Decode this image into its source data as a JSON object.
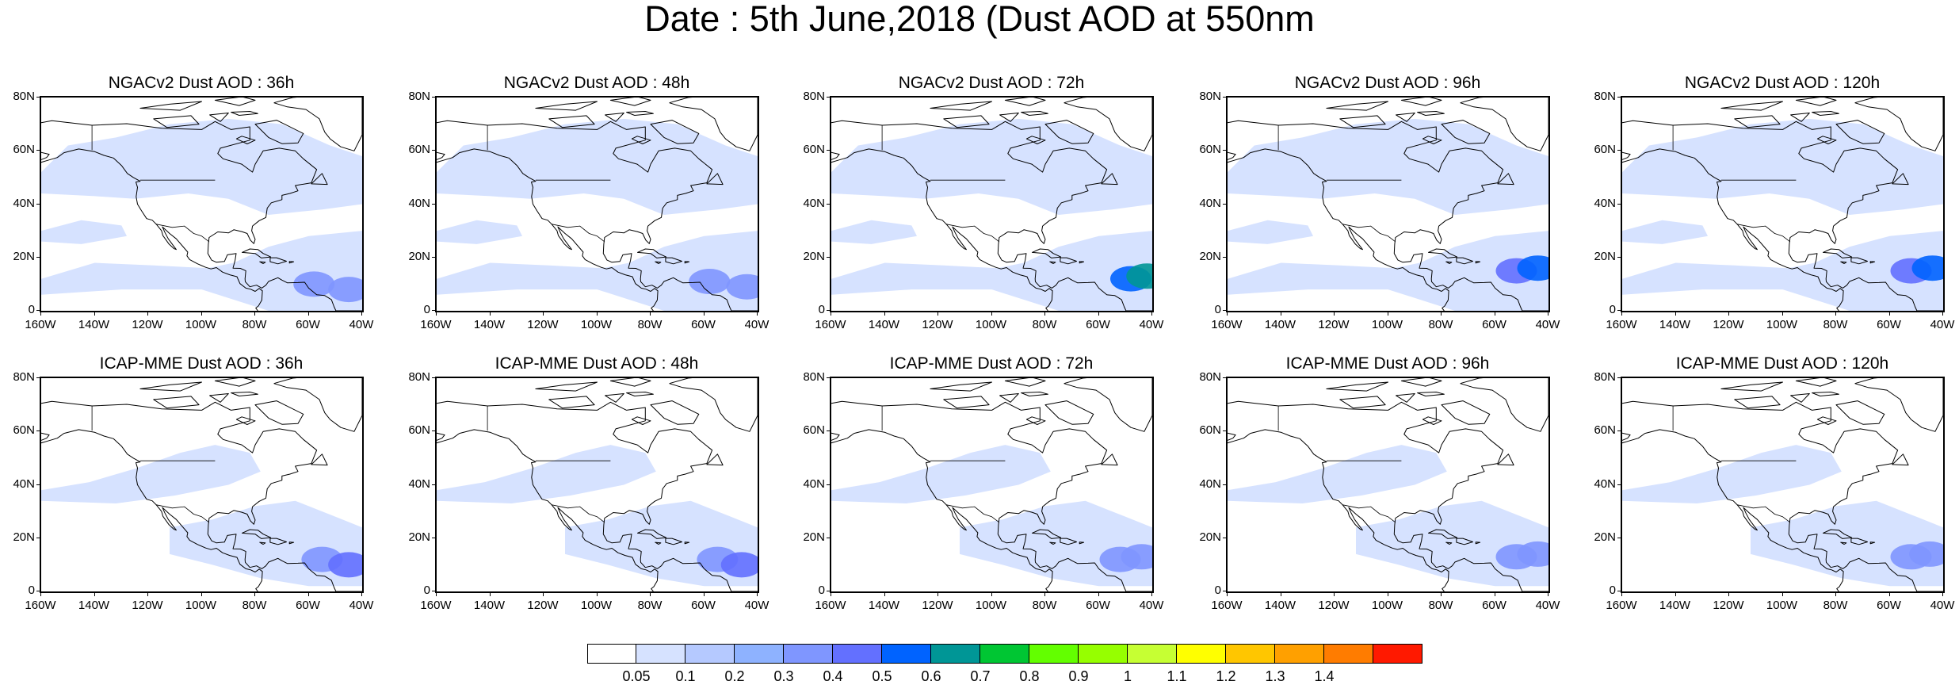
{
  "title": "Date : 5th June,2018 (Dust AOD at 550nm",
  "map_axes": {
    "lat_ticks": [
      "80N",
      "60N",
      "40N",
      "20N",
      "0"
    ],
    "lon_ticks": [
      "160W",
      "140W",
      "120W",
      "100W",
      "80W",
      "60W",
      "40W"
    ],
    "lon_range": [
      -160,
      -40
    ],
    "lat_range": [
      0,
      80
    ]
  },
  "panels": [
    {
      "title": "NGACv2 Dust AOD : 36h",
      "model": "NGACv2",
      "lead": "36h",
      "plumes": [
        {
          "lon": -58,
          "lat": 10,
          "aod": 0.3
        },
        {
          "lon": -45,
          "lat": 8,
          "aod": 0.3
        }
      ]
    },
    {
      "title": "NGACv2 Dust AOD : 48h",
      "model": "NGACv2",
      "lead": "48h",
      "plumes": [
        {
          "lon": -58,
          "lat": 11,
          "aod": 0.3
        },
        {
          "lon": -44,
          "lat": 9,
          "aod": 0.3
        }
      ]
    },
    {
      "title": "NGACv2 Dust AOD : 72h",
      "model": "NGACv2",
      "lead": "72h",
      "plumes": [
        {
          "lon": -48,
          "lat": 12,
          "aod": 0.5
        },
        {
          "lon": -42,
          "lat": 13,
          "aod": 0.6
        }
      ]
    },
    {
      "title": "NGACv2 Dust AOD : 96h",
      "model": "NGACv2",
      "lead": "96h",
      "plumes": [
        {
          "lon": -52,
          "lat": 15,
          "aod": 0.4
        },
        {
          "lon": -44,
          "lat": 16,
          "aod": 0.5
        }
      ]
    },
    {
      "title": "NGACv2 Dust AOD : 120h",
      "model": "NGACv2",
      "lead": "120h",
      "plumes": [
        {
          "lon": -52,
          "lat": 15,
          "aod": 0.4
        },
        {
          "lon": -44,
          "lat": 16,
          "aod": 0.5
        }
      ]
    },
    {
      "title": "ICAP-MME Dust AOD : 36h",
      "model": "ICAP-MME",
      "lead": "36h",
      "plumes": [
        {
          "lon": -55,
          "lat": 12,
          "aod": 0.3
        },
        {
          "lon": -45,
          "lat": 10,
          "aod": 0.4
        }
      ]
    },
    {
      "title": "ICAP-MME Dust AOD : 48h",
      "model": "ICAP-MME",
      "lead": "48h",
      "plumes": [
        {
          "lon": -55,
          "lat": 12,
          "aod": 0.3
        },
        {
          "lon": -46,
          "lat": 10,
          "aod": 0.4
        }
      ]
    },
    {
      "title": "ICAP-MME Dust AOD : 72h",
      "model": "ICAP-MME",
      "lead": "72h",
      "plumes": [
        {
          "lon": -52,
          "lat": 12,
          "aod": 0.3
        },
        {
          "lon": -44,
          "lat": 13,
          "aod": 0.3
        }
      ]
    },
    {
      "title": "ICAP-MME Dust AOD : 96h",
      "model": "ICAP-MME",
      "lead": "96h",
      "plumes": [
        {
          "lon": -52,
          "lat": 13,
          "aod": 0.3
        },
        {
          "lon": -44,
          "lat": 14,
          "aod": 0.3
        }
      ]
    },
    {
      "title": "ICAP-MME Dust AOD : 120h",
      "model": "ICAP-MME",
      "lead": "120h",
      "plumes": [
        {
          "lon": -52,
          "lat": 13,
          "aod": 0.3
        },
        {
          "lon": -45,
          "lat": 14,
          "aod": 0.3
        }
      ]
    }
  ],
  "colorbar": {
    "levels": [
      "0.05",
      "0.1",
      "0.2",
      "0.3",
      "0.4",
      "0.5",
      "0.6",
      "0.7",
      "0.8",
      "0.9",
      "1",
      "1.1",
      "1.2",
      "1.3",
      "1.4"
    ],
    "colors": [
      "#ffffff",
      "#d6e2ff",
      "#b5c9ff",
      "#8eb2ff",
      "#7f96ff",
      "#6370ff",
      "#0063ff",
      "#009696",
      "#00c633",
      "#63ff00",
      "#96ff00",
      "#c6ff33",
      "#ffff00",
      "#ffc600",
      "#ffa000",
      "#ff7c00",
      "#ff1900"
    ]
  },
  "colors": {
    "haze": "#d6e2ff",
    "coastline": "#000000",
    "background": "#ffffff"
  }
}
